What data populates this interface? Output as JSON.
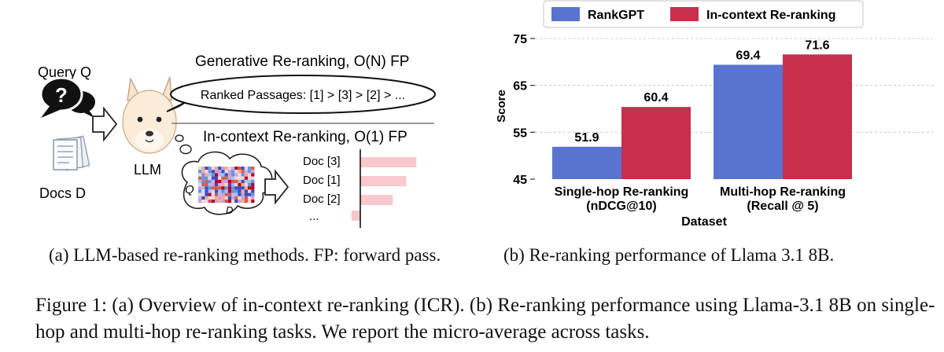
{
  "panel_a": {
    "query_label": "Query Q",
    "docs_label": "Docs D",
    "llm_label": "LLM",
    "generative_title": "Generative Re-ranking, O(N) FP",
    "ranked_passages": "Ranked Passages: [1] > [3] > [2] > ...",
    "icr_title": "In-context  Re-ranking, O(1) FP",
    "thought_q": "Q",
    "thought_d": "D",
    "docs": [
      {
        "label": "Doc [3]",
        "score": 0.95
      },
      {
        "label": "Doc [1]",
        "score": 0.78
      },
      {
        "label": "Doc [2]",
        "score": 0.55
      },
      {
        "label": "...",
        "score": -0.15
      }
    ],
    "colors": {
      "bar": "#f8c9cc",
      "speech": "#111111"
    }
  },
  "chart_data": {
    "type": "bar",
    "categories": [
      "Single-hop Re-ranking\n(nDCG@10)",
      "Multi-hop Re-ranking\n(Recall @ 5)"
    ],
    "series": [
      {
        "name": "RankGPT",
        "values": [
          51.9,
          69.4
        ],
        "color": "#5874d0"
      },
      {
        "name": "In-context Re-ranking",
        "values": [
          60.4,
          71.6
        ],
        "color": "#c72f4b"
      }
    ],
    "xlabel": "Dataset",
    "ylabel": "Score",
    "ylim": [
      45,
      75
    ],
    "yticks": [
      45,
      55,
      65,
      75
    ],
    "grid": true,
    "legend": "top"
  },
  "captions": {
    "a": "(a) LLM-based re-ranking methods. FP: forward pass.",
    "b": "(b) Re-ranking performance of Llama 3.1 8B.",
    "figure": "Figure 1: (a) Overview of in-context re-ranking (ICR). (b) Re-ranking performance using Llama-3.1 8B on single-hop and multi-hop re-ranking tasks. We report the micro-average across tasks."
  }
}
